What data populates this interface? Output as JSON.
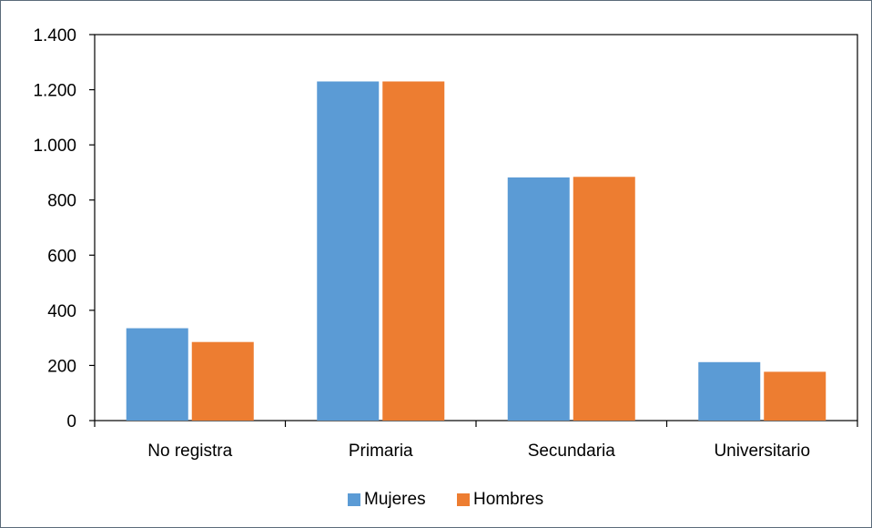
{
  "chart_data": {
    "type": "bar",
    "title": "",
    "xlabel": "",
    "ylabel": "",
    "categories": [
      "No registra",
      "Primaria",
      "Secundaria",
      "Universitario"
    ],
    "series": [
      {
        "name": "Mujeres",
        "color": "#5b9bd5",
        "values": [
          335,
          1230,
          882,
          212
        ]
      },
      {
        "name": "Hombres",
        "color": "#ed7d31",
        "values": [
          285,
          1230,
          884,
          177
        ]
      }
    ],
    "ylim": [
      0,
      1400
    ],
    "yticks": [
      0,
      200,
      400,
      600,
      800,
      1000,
      1200,
      1400
    ],
    "ytick_labels": [
      "0",
      "200",
      "400",
      "600",
      "800",
      "1.000",
      "1.200",
      "1.400"
    ],
    "grid": false,
    "legend_position": "bottom"
  }
}
